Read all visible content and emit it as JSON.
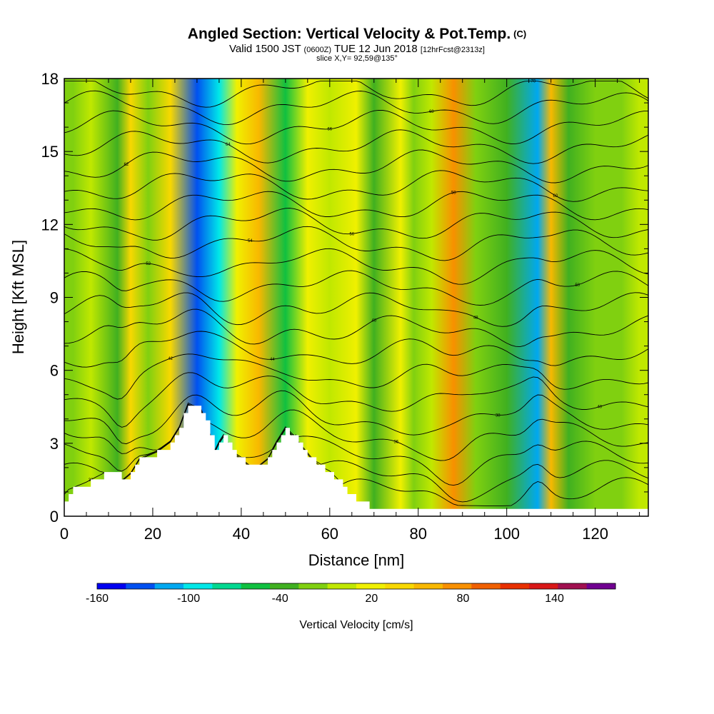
{
  "header": {
    "title": "Angled Section: Vertical Velocity & Pot.Temp.",
    "title_tag": "(C)",
    "subtitle_main": "Valid 1500 JST",
    "subtitle_z": "(0600Z)",
    "subtitle_date": "TUE 12 Jun 2018",
    "subtitle_fcst": "[12hrFcst@2313z]",
    "slice": "slice X,Y= 92,59@135°"
  },
  "chart_data": {
    "type": "heatmap",
    "title": "Angled Section: Vertical Velocity & Pot.Temp.",
    "xlabel": "Distance [nm]",
    "ylabel": "Height [Kft MSL]",
    "xlim": [
      0,
      132
    ],
    "ylim": [
      0,
      18
    ],
    "x_ticks": [
      0,
      20,
      40,
      60,
      80,
      100,
      120
    ],
    "y_ticks": [
      0,
      3,
      6,
      9,
      12,
      15,
      18
    ],
    "colorbar": {
      "label": "Vertical Velocity [cm/s]",
      "tick_labels": [
        "-160",
        "-100",
        "-40",
        "20",
        "80",
        "140"
      ],
      "tick_values": [
        -160,
        -100,
        -40,
        20,
        80,
        140
      ],
      "range": [
        -160,
        180
      ],
      "step": 20,
      "colors": [
        "#0000f0",
        "#0050f0",
        "#00a8f0",
        "#00e8e8",
        "#00d890",
        "#10c040",
        "#40b020",
        "#80d010",
        "#c0e800",
        "#f0f000",
        "#f8d800",
        "#f8b800",
        "#f89000",
        "#f06000",
        "#e83000",
        "#d81818",
        "#a01050",
        "#700090"
      ]
    },
    "velocity_bands": [
      {
        "x": 2,
        "v": -20
      },
      {
        "x": 6,
        "v": 0
      },
      {
        "x": 12,
        "v": -30
      },
      {
        "x": 15,
        "v": 40
      },
      {
        "x": 19,
        "v": -20
      },
      {
        "x": 24,
        "v": 50
      },
      {
        "x": 30,
        "v": -140
      },
      {
        "x": 35,
        "v": -100
      },
      {
        "x": 39,
        "v": 30
      },
      {
        "x": 44,
        "v": 60
      },
      {
        "x": 50,
        "v": -60
      },
      {
        "x": 55,
        "v": 20
      },
      {
        "x": 60,
        "v": 0
      },
      {
        "x": 66,
        "v": 30
      },
      {
        "x": 70,
        "v": -40
      },
      {
        "x": 76,
        "v": 20
      },
      {
        "x": 79,
        "v": -20
      },
      {
        "x": 83,
        "v": 10
      },
      {
        "x": 88,
        "v": 90
      },
      {
        "x": 93,
        "v": -10
      },
      {
        "x": 100,
        "v": -30
      },
      {
        "x": 107,
        "v": -110
      },
      {
        "x": 110,
        "v": 60
      },
      {
        "x": 114,
        "v": -40
      },
      {
        "x": 120,
        "v": -10
      },
      {
        "x": 126,
        "v": -20
      },
      {
        "x": 130,
        "v": 10
      }
    ],
    "terrain": [
      {
        "x": 0,
        "h": 0.6
      },
      {
        "x": 1,
        "h": 1.0
      },
      {
        "x": 5,
        "h": 1.3
      },
      {
        "x": 9,
        "h": 1.7
      },
      {
        "x": 12,
        "h": 1.7
      },
      {
        "x": 13,
        "h": 1.4
      },
      {
        "x": 15,
        "h": 1.7
      },
      {
        "x": 17,
        "h": 2.3
      },
      {
        "x": 21,
        "h": 2.6
      },
      {
        "x": 24,
        "h": 3.0
      },
      {
        "x": 26,
        "h": 3.6
      },
      {
        "x": 28,
        "h": 4.6
      },
      {
        "x": 31,
        "h": 4.3
      },
      {
        "x": 33,
        "h": 3.3
      },
      {
        "x": 34,
        "h": 2.6
      },
      {
        "x": 35,
        "h": 3.0
      },
      {
        "x": 36,
        "h": 3.3
      },
      {
        "x": 38,
        "h": 2.6
      },
      {
        "x": 40,
        "h": 2.3
      },
      {
        "x": 42,
        "h": 2.0
      },
      {
        "x": 44,
        "h": 2.0
      },
      {
        "x": 46,
        "h": 2.3
      },
      {
        "x": 48,
        "h": 3.0
      },
      {
        "x": 50,
        "h": 3.6
      },
      {
        "x": 53,
        "h": 3.0
      },
      {
        "x": 56,
        "h": 2.3
      },
      {
        "x": 58,
        "h": 2.0
      },
      {
        "x": 60,
        "h": 1.8
      },
      {
        "x": 62,
        "h": 1.4
      },
      {
        "x": 64,
        "h": 1.0
      },
      {
        "x": 66,
        "h": 0.6
      },
      {
        "x": 70,
        "h": 0.4
      },
      {
        "x": 80,
        "h": 0.35
      },
      {
        "x": 132,
        "h": 0.3
      }
    ],
    "theta_contours": [
      {
        "h0": 0.9,
        "label": "30"
      },
      {
        "h0": 1.6,
        "label": "32"
      },
      {
        "h0": 2.4,
        "label": "34"
      },
      {
        "h0": 3.2,
        "label": "36"
      },
      {
        "h0": 4.0,
        "label": "38"
      },
      {
        "h0": 4.9,
        "label": "40"
      },
      {
        "h0": 5.8,
        "label": "42"
      },
      {
        "h0": 6.7,
        "label": "44"
      },
      {
        "h0": 7.6,
        "label": "46"
      },
      {
        "h0": 8.5,
        "label": "48"
      },
      {
        "h0": 9.4,
        "label": "50"
      },
      {
        "h0": 10.3,
        "label": "52"
      },
      {
        "h0": 11.2,
        "label": "54"
      },
      {
        "h0": 12.0,
        "label": "56"
      },
      {
        "h0": 12.8,
        "label": "58"
      },
      {
        "h0": 13.6,
        "label": "60"
      },
      {
        "h0": 14.4,
        "label": "62"
      },
      {
        "h0": 15.2,
        "label": "64"
      },
      {
        "h0": 16.0,
        "label": "66"
      },
      {
        "h0": 16.8,
        "label": "68"
      },
      {
        "h0": 17.5,
        "label": "70"
      }
    ]
  }
}
